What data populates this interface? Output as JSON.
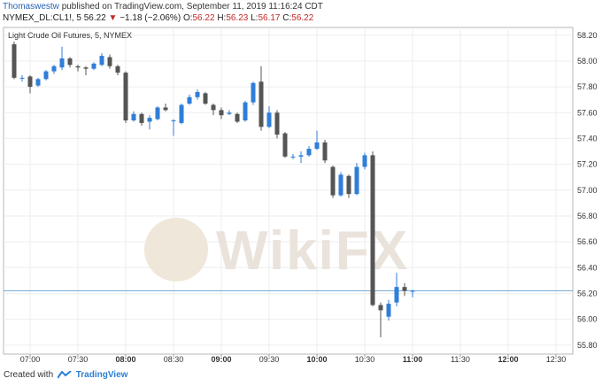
{
  "header": {
    "author": "Thomaswestw",
    "published_text": "published on TradingView.com, September 11, 2019 11:16:24 CDT"
  },
  "quote": {
    "symbol": "NYMEX_DL:CL1!, 5",
    "last": "56.22",
    "change_arrow": "▼",
    "change": "−1.18 (−2.06%)",
    "open_label": "O:",
    "open": "56.22",
    "high_label": "H:",
    "high": "56.23",
    "low_label": "L:",
    "low": "56.17",
    "close_label": "C:",
    "close": "56.22"
  },
  "watermark": {
    "text": "WikiFX"
  },
  "footer": {
    "created_with": "Created with",
    "brand": "TradingView"
  },
  "colors": {
    "up": "#2f7ed8",
    "down": "#555555",
    "wick": "#888888",
    "last_line": "#4a90c8"
  },
  "chart_data": {
    "type": "candlestick",
    "title": "Light Crude Oil Futures, 5, NYMEX",
    "interval_minutes": 5,
    "y_ticks": [
      "58.20",
      "58.00",
      "57.80",
      "57.60",
      "57.40",
      "57.20",
      "57.00",
      "56.80",
      "56.60",
      "56.40",
      "56.20",
      "56.00",
      "55.80"
    ],
    "x_ticks": [
      "07:00",
      "07:30",
      "08:00",
      "08:30",
      "09:00",
      "09:30",
      "10:00",
      "10:30",
      "11:00",
      "11:30",
      "12:00",
      "12:30"
    ],
    "x_ticks_bold": [
      "08:00",
      "09:00",
      "10:00",
      "11:00",
      "12:00"
    ],
    "ylim": [
      55.73,
      58.26
    ],
    "last_price": 56.22,
    "candles": [
      {
        "time": "06:50",
        "open": 58.13,
        "high": 58.15,
        "low": 57.86,
        "close": 57.87
      },
      {
        "time": "06:55",
        "open": 57.87,
        "high": 57.89,
        "low": 57.84,
        "close": 57.87
      },
      {
        "time": "07:00",
        "open": 57.88,
        "high": 57.89,
        "low": 57.75,
        "close": 57.8
      },
      {
        "time": "07:05",
        "open": 57.81,
        "high": 57.87,
        "low": 57.8,
        "close": 57.86
      },
      {
        "time": "07:10",
        "open": 57.86,
        "high": 57.93,
        "low": 57.85,
        "close": 57.92
      },
      {
        "time": "07:15",
        "open": 57.92,
        "high": 57.97,
        "low": 57.9,
        "close": 57.96
      },
      {
        "time": "07:20",
        "open": 57.95,
        "high": 58.11,
        "low": 57.93,
        "close": 58.02
      },
      {
        "time": "07:25",
        "open": 58.02,
        "high": 58.03,
        "low": 57.95,
        "close": 57.97
      },
      {
        "time": "07:30",
        "open": 57.96,
        "high": 57.97,
        "low": 57.92,
        "close": 57.95
      },
      {
        "time": "07:35",
        "open": 57.95,
        "high": 57.96,
        "low": 57.89,
        "close": 57.94
      },
      {
        "time": "07:40",
        "open": 57.94,
        "high": 57.99,
        "low": 57.93,
        "close": 57.98
      },
      {
        "time": "07:45",
        "open": 57.97,
        "high": 58.06,
        "low": 57.96,
        "close": 58.04
      },
      {
        "time": "07:50",
        "open": 58.03,
        "high": 58.05,
        "low": 57.94,
        "close": 57.96
      },
      {
        "time": "07:55",
        "open": 57.96,
        "high": 57.97,
        "low": 57.89,
        "close": 57.91
      },
      {
        "time": "08:00",
        "open": 57.91,
        "high": 57.92,
        "low": 57.52,
        "close": 57.54
      },
      {
        "time": "08:05",
        "open": 57.54,
        "high": 57.61,
        "low": 57.53,
        "close": 57.59
      },
      {
        "time": "08:10",
        "open": 57.59,
        "high": 57.6,
        "low": 57.5,
        "close": 57.52
      },
      {
        "time": "08:15",
        "open": 57.53,
        "high": 57.58,
        "low": 57.47,
        "close": 57.56
      },
      {
        "time": "08:20",
        "open": 57.55,
        "high": 57.65,
        "low": 57.54,
        "close": 57.64
      },
      {
        "time": "08:25",
        "open": 57.64,
        "high": 57.67,
        "low": 57.61,
        "close": 57.62
      },
      {
        "time": "08:30",
        "open": 57.54,
        "high": 57.55,
        "low": 57.42,
        "close": 57.54
      },
      {
        "time": "08:35",
        "open": 57.52,
        "high": 57.67,
        "low": 57.51,
        "close": 57.66
      },
      {
        "time": "08:40",
        "open": 57.67,
        "high": 57.74,
        "low": 57.66,
        "close": 57.72
      },
      {
        "time": "08:45",
        "open": 57.72,
        "high": 57.78,
        "low": 57.7,
        "close": 57.76
      },
      {
        "time": "08:50",
        "open": 57.75,
        "high": 57.76,
        "low": 57.66,
        "close": 57.67
      },
      {
        "time": "08:55",
        "open": 57.66,
        "high": 57.67,
        "low": 57.58,
        "close": 57.62
      },
      {
        "time": "09:00",
        "open": 57.62,
        "high": 57.64,
        "low": 57.55,
        "close": 57.58
      },
      {
        "time": "09:05",
        "open": 57.59,
        "high": 57.62,
        "low": 57.58,
        "close": 57.6
      },
      {
        "time": "09:10",
        "open": 57.59,
        "high": 57.6,
        "low": 57.52,
        "close": 57.53
      },
      {
        "time": "09:15",
        "open": 57.54,
        "high": 57.69,
        "low": 57.53,
        "close": 57.68
      },
      {
        "time": "09:20",
        "open": 57.68,
        "high": 57.84,
        "low": 57.66,
        "close": 57.83
      },
      {
        "time": "09:25",
        "open": 57.84,
        "high": 57.96,
        "low": 57.46,
        "close": 57.49
      },
      {
        "time": "09:30",
        "open": 57.49,
        "high": 57.65,
        "low": 57.48,
        "close": 57.6
      },
      {
        "time": "09:35",
        "open": 57.6,
        "high": 57.62,
        "low": 57.4,
        "close": 57.43
      },
      {
        "time": "09:40",
        "open": 57.44,
        "high": 57.45,
        "low": 57.25,
        "close": 57.26
      },
      {
        "time": "09:45",
        "open": 57.26,
        "high": 57.28,
        "low": 57.24,
        "close": 57.26
      },
      {
        "time": "09:50",
        "open": 57.26,
        "high": 57.3,
        "low": 57.21,
        "close": 57.27
      },
      {
        "time": "09:55",
        "open": 57.27,
        "high": 57.34,
        "low": 57.26,
        "close": 57.32
      },
      {
        "time": "10:00",
        "open": 57.32,
        "high": 57.46,
        "low": 57.31,
        "close": 57.37
      },
      {
        "time": "10:05",
        "open": 57.37,
        "high": 57.39,
        "low": 57.21,
        "close": 57.23
      },
      {
        "time": "10:10",
        "open": 57.18,
        "high": 57.19,
        "low": 56.94,
        "close": 56.96
      },
      {
        "time": "10:15",
        "open": 56.96,
        "high": 57.14,
        "low": 56.95,
        "close": 57.12
      },
      {
        "time": "10:20",
        "open": 57.11,
        "high": 57.12,
        "low": 56.94,
        "close": 56.97
      },
      {
        "time": "10:25",
        "open": 56.97,
        "high": 57.21,
        "low": 56.96,
        "close": 57.18
      },
      {
        "time": "10:30",
        "open": 57.18,
        "high": 57.29,
        "low": 57.16,
        "close": 57.27
      },
      {
        "time": "10:35",
        "open": 57.27,
        "high": 57.3,
        "low": 56.1,
        "close": 56.11
      },
      {
        "time": "10:40",
        "open": 56.11,
        "high": 56.13,
        "low": 55.86,
        "close": 56.07
      },
      {
        "time": "10:45",
        "open": 56.02,
        "high": 56.15,
        "low": 55.99,
        "close": 56.12
      },
      {
        "time": "10:50",
        "open": 56.13,
        "high": 56.36,
        "low": 56.1,
        "close": 56.25
      },
      {
        "time": "10:55",
        "open": 56.25,
        "high": 56.28,
        "low": 56.18,
        "close": 56.22
      },
      {
        "time": "11:00",
        "open": 56.22,
        "high": 56.23,
        "low": 56.17,
        "close": 56.22
      }
    ]
  }
}
